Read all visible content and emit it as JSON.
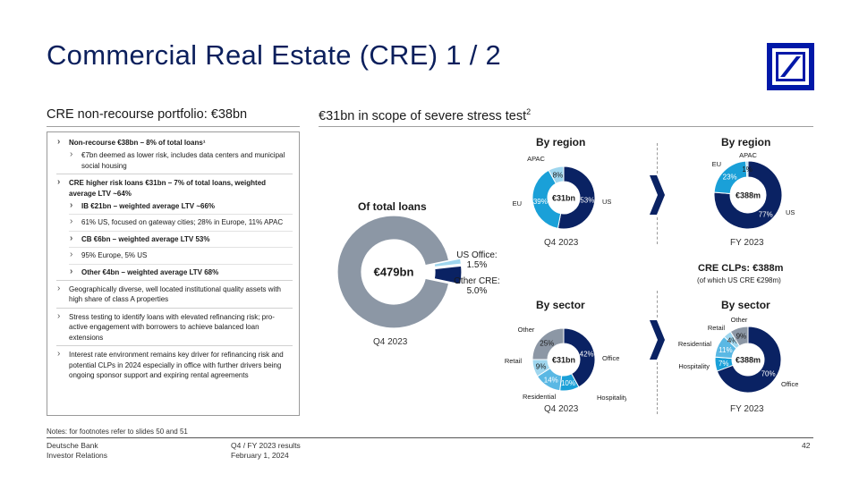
{
  "header": {
    "title": "Commercial Real Estate (CRE) 1 / 2"
  },
  "left_section": {
    "heading": "CRE non-recourse portfolio: €38bn",
    "bullets": [
      {
        "text": "Non-recourse €38bn – 8% of total loans¹",
        "level": 0,
        "bold": true
      },
      {
        "text": "€7bn deemed as lower risk, includes data centers and municipal social housing",
        "level": 1,
        "bold": false
      },
      {
        "text": "CRE higher risk loans €31bn – 7% of total loans, weighted average LTV ~64%",
        "level": 0,
        "bold": true
      },
      {
        "text": "IB €21bn – weighted average LTV ~66%",
        "level": 1,
        "bold": true
      },
      {
        "text": "61% US, focused on gateway cities; 28% in Europe, 11% APAC",
        "level": 1,
        "bold": false
      },
      {
        "text": "CB €6bn – weighted average LTV 53%",
        "level": 1,
        "bold": true
      },
      {
        "text": "95% Europe, 5% US",
        "level": 1,
        "bold": false
      },
      {
        "text": "Other €4bn – weighted average LTV 68%",
        "level": 1,
        "bold": true
      },
      {
        "text": "Geographically diverse, well located institutional quality assets with high share of class A properties",
        "level": 0,
        "bold": false
      },
      {
        "text": "Stress testing to identify loans with elevated refinancing risk; pro-active engagement with borrowers to achieve balanced loan extensions",
        "level": 0,
        "bold": false
      },
      {
        "text": "Interest rate environment remains key driver for refinancing risk and potential CLPs in 2024 especially in office with further drivers being ongoing sponsor support and expiring rental agreements",
        "level": 0,
        "bold": false
      }
    ]
  },
  "right_section": {
    "heading": "€31bn in scope of severe stress test",
    "heading_sup": "2",
    "clp_title": "CRE CLPs: €388m",
    "clp_subtitle": "(of which US CRE €298m)"
  },
  "colors": {
    "navy": "#0a2263",
    "blue": "#1aa0d8",
    "light_blue": "#9fd6ee",
    "grey": "#8c97a5",
    "title": "#0b1f5c",
    "logo": "#0018a8"
  },
  "icons": {
    "logo": "deutsche-bank-logo-icon",
    "arrow": "chevron-right-icon"
  },
  "chart_data": [
    {
      "type": "pie",
      "variant": "donut",
      "title": "Of total loans",
      "center_label": "€479bn",
      "caption": "Q4 2023",
      "slices": [
        {
          "name": "US Office:",
          "value_label": "1.5%",
          "value": 1.5,
          "color": "#9fd6ee"
        },
        {
          "name": "Other CRE:",
          "value_label": "5.0%",
          "value": 5.0,
          "color": "#0a2263"
        },
        {
          "name": "",
          "value_label": "",
          "value": 93.5,
          "color": "#8c97a5"
        }
      ]
    },
    {
      "type": "pie",
      "variant": "donut",
      "title": "By region",
      "center_label": "€31bn",
      "caption": "Q4 2023",
      "slices": [
        {
          "name": "US",
          "value_label": "53%",
          "value": 53,
          "color": "#0a2263"
        },
        {
          "name": "EU",
          "value_label": "39%",
          "value": 39,
          "color": "#1aa0d8"
        },
        {
          "name": "APAC",
          "value_label": "8%",
          "value": 8,
          "color": "#9fd6ee"
        }
      ]
    },
    {
      "type": "pie",
      "variant": "donut",
      "title": "By region",
      "center_label": "€388m",
      "caption": "FY 2023",
      "slices": [
        {
          "name": "US",
          "value_label": "77%",
          "value": 77,
          "color": "#0a2263"
        },
        {
          "name": "EU",
          "value_label": "23%",
          "value": 23,
          "color": "#1aa0d8"
        },
        {
          "name": "APAC",
          "value_label": "1%",
          "value": 1,
          "color": "#9fd6ee"
        }
      ]
    },
    {
      "type": "pie",
      "variant": "donut",
      "title": "By sector",
      "center_label": "€31bn",
      "caption": "Q4 2023",
      "slices": [
        {
          "name": "Office",
          "value_label": "42%",
          "value": 42,
          "color": "#0a2263"
        },
        {
          "name": "Hospitality",
          "value_label": "10%",
          "value": 10,
          "color": "#1aa0d8"
        },
        {
          "name": "Residential",
          "value_label": "14%",
          "value": 14,
          "color": "#5ab8e4"
        },
        {
          "name": "Retail",
          "value_label": "9%",
          "value": 9,
          "color": "#9fd6ee"
        },
        {
          "name": "Other",
          "value_label": "25%",
          "value": 25,
          "color": "#8c97a5"
        }
      ]
    },
    {
      "type": "pie",
      "variant": "donut",
      "title": "By sector",
      "center_label": "€388m",
      "caption": "FY 2023",
      "slices": [
        {
          "name": "Office",
          "value_label": "70%",
          "value": 70,
          "color": "#0a2263"
        },
        {
          "name": "Hospitality",
          "value_label": "7%",
          "value": 7,
          "color": "#1aa0d8"
        },
        {
          "name": "Residential",
          "value_label": "11%",
          "value": 11,
          "color": "#5ab8e4"
        },
        {
          "name": "Retail",
          "value_label": "4%",
          "value": 4,
          "color": "#9fd6ee"
        },
        {
          "name": "Other",
          "value_label": "9%",
          "value": 9,
          "color": "#8c97a5"
        }
      ]
    }
  ],
  "footer": {
    "notes": "Notes: for footnotes refer to slides 50 and 51",
    "company": "Deutsche Bank",
    "department": "Investor Relations",
    "report": "Q4 / FY 2023 results",
    "date": "February 1, 2024",
    "page_number": "42"
  }
}
